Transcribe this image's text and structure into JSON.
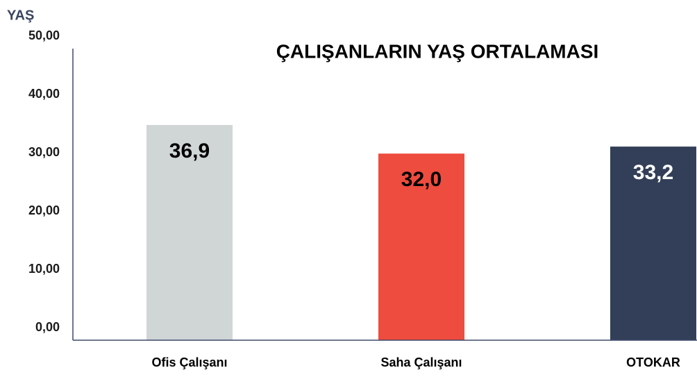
{
  "chart_data": {
    "type": "bar",
    "title": "ÇALIŞANLARIN YAŞ ORTALAMASI",
    "y_axis_label": "YAŞ",
    "categories": [
      "Ofis Çalışanı",
      "Saha Çalışanı",
      "OTOKAR"
    ],
    "values": [
      36.9,
      32.0,
      33.2
    ],
    "value_labels": [
      "36,9",
      "32,0",
      "33,2"
    ],
    "colors": [
      "#d0d5d6",
      "#ee4c3e",
      "#333f58"
    ],
    "label_colors": [
      "#000000",
      "#000000",
      "#ffffff"
    ],
    "ylim": [
      0,
      50
    ],
    "yticks": [
      {
        "value": 0,
        "label": "0,00"
      },
      {
        "value": 10,
        "label": "10,00"
      },
      {
        "value": 20,
        "label": "20,00"
      },
      {
        "value": 30,
        "label": "30,00"
      },
      {
        "value": 40,
        "label": "40,00"
      },
      {
        "value": 50,
        "label": "50,00"
      }
    ],
    "grid": false
  }
}
